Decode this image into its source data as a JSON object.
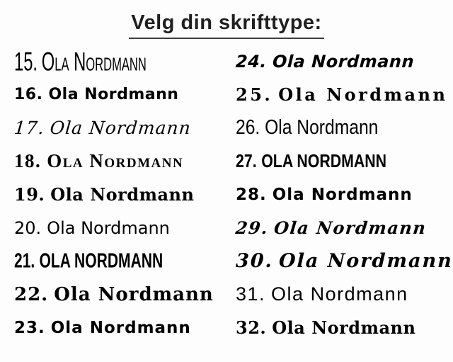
{
  "page": {
    "background_color": "#fdfdfd",
    "text_color": "#000000",
    "title_underline_color": "#3d3d3d"
  },
  "header": {
    "title": "Velg din skrifttype:"
  },
  "fonts": {
    "sample_text": "Ola Nordmann",
    "columns": [
      {
        "items": [
          {
            "number": "15.",
            "text": "Ola Nordmann",
            "style": "tall-condensed-handwritten-caps"
          },
          {
            "number": "16.",
            "text": "Ola Nordmann",
            "style": "bold-rounded-sans"
          },
          {
            "number": "17.",
            "text": "Ola Nordmann",
            "style": "cursive-script"
          },
          {
            "number": "18.",
            "text": "Ola Nordmann",
            "style": "serif-small-caps"
          },
          {
            "number": "19.",
            "text": "Ola Nordmann",
            "style": "semi-blackletter-bold"
          },
          {
            "number": "20.",
            "text": "Ola Nordmann",
            "style": "casual-rounded-sans"
          },
          {
            "number": "21.",
            "text": "Ola Nordmann",
            "style": "condensed-display-caps"
          },
          {
            "number": "22.",
            "text": "Ola Nordmann",
            "style": "fraktur-blackletter"
          },
          {
            "number": "23.",
            "text": "Ola Nordmann",
            "style": "bold-marker-handwriting"
          }
        ]
      },
      {
        "items": [
          {
            "number": "24.",
            "text": "Ola Nordmann",
            "style": "bold-brush-script"
          },
          {
            "number": "25.",
            "text": "Ola Nordmann",
            "style": "celtic-uncial-wide"
          },
          {
            "number": "26.",
            "text": "Ola Nordmann",
            "style": "condensed-sans"
          },
          {
            "number": "27.",
            "text": "Ola Nordmann",
            "style": "bold-condensed-caps"
          },
          {
            "number": "28.",
            "text": "Ola Nordmann",
            "style": "heavy-rounded-sans"
          },
          {
            "number": "29.",
            "text": "Ola Nordmann",
            "style": "bold-italic-script"
          },
          {
            "number": "30.",
            "text": "Ola Nordmann",
            "style": "elegant-script-serif"
          },
          {
            "number": "31.",
            "text": "Ola Nordmann",
            "style": "light-modern-sans"
          },
          {
            "number": "32.",
            "text": "Ola Nordmann",
            "style": "bold-slab-serif"
          }
        ]
      }
    ]
  }
}
